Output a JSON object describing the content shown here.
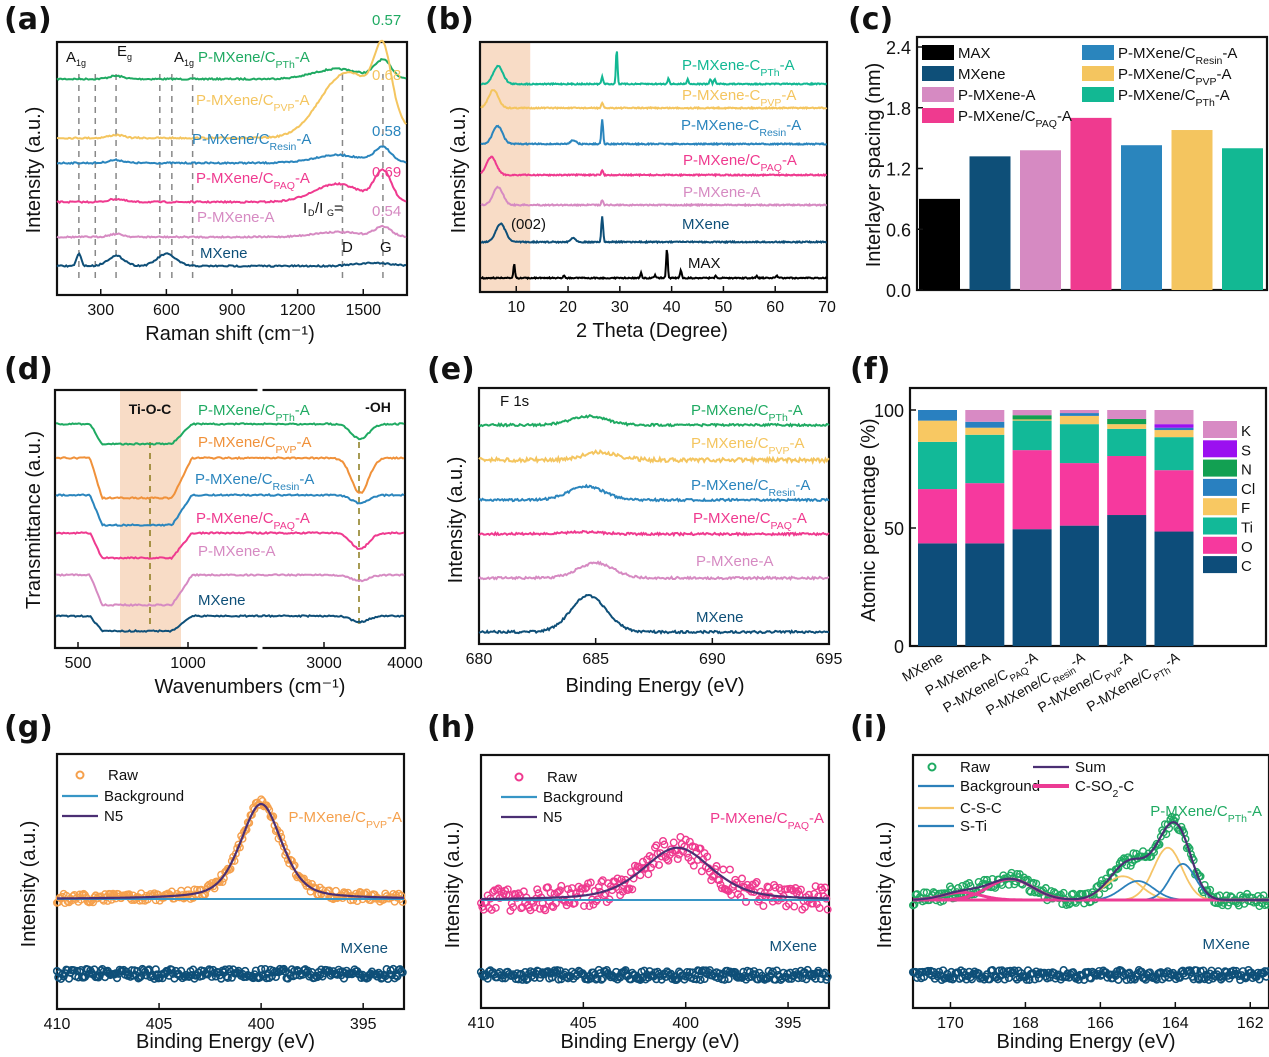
{
  "figure": {
    "panels": [
      "(a)",
      "(b)",
      "(c)",
      "(d)",
      "(e)",
      "(f)",
      "(g)",
      "(h)",
      "(i)"
    ]
  },
  "colors": {
    "MAX": "#000000",
    "MXene": "#0e4f78",
    "P-MXene-A": "#d68ac2",
    "PAQ": "#ef3a8f",
    "Resin": "#2a85bd",
    "PVP": "#f4c55f",
    "PTh": "#1faa62",
    "PTh_teal": "#12b893",
    "shade": "#f8dcc6",
    "N5": "#4b2f73",
    "background_line": "#3796c6",
    "CSO2C": "#ec3b94",
    "CSC": "#f5c467",
    "STi": "#2c80ba",
    "K": "#d88ac4",
    "S": "#9b10f0",
    "N": "#12a052",
    "Cl": "#2980c0",
    "F": "#f8c862",
    "Ti": "#12b998",
    "O": "#f6399e",
    "C": "#0d4d7a"
  },
  "chart_data": [
    {
      "id": "a",
      "type": "line",
      "title": "",
      "xlabel": "Raman shift (cm-1)",
      "ylabel": "Intensity (a.u.)",
      "xlim": [
        100,
        1700
      ],
      "xticks": [
        300,
        600,
        900,
        1200,
        1500
      ],
      "series": [
        {
          "name": "P-MXene/C_PTh-A",
          "id_ig": "0.57"
        },
        {
          "name": "P-MXene/C_PVP-A",
          "id_ig": "0.68"
        },
        {
          "name": "P-MXene/C_Resin-A",
          "id_ig": "0.58"
        },
        {
          "name": "P-MXene/C_PAQ-A",
          "id_ig": "0.69"
        },
        {
          "name": "P-MXene-A",
          "id_ig": "0.54"
        },
        {
          "name": "MXene",
          "id_ig": ""
        }
      ],
      "dashed_lines_x": [
        200,
        275,
        370,
        570,
        625,
        720,
        1405,
        1590
      ],
      "annotations": [
        "A1g",
        "Eg",
        "A1g",
        "ID/IG=",
        "D",
        "G"
      ],
      "peaks": {
        "D": 1405,
        "G": 1590
      }
    },
    {
      "id": "b",
      "type": "line",
      "xlabel": "2 Theta (Degree)",
      "ylabel": "Intensity (a.u.)",
      "xlim": [
        3,
        70
      ],
      "xticks": [
        10,
        20,
        30,
        40,
        50,
        60,
        70
      ],
      "shaded_region_x": [
        3,
        12.7
      ],
      "annotation": "(002)",
      "series": [
        {
          "name": "P-MXene-C_PTh-A",
          "peak_002": 6.5
        },
        {
          "name": "P-MXene-C_PVP-A",
          "peak_002": 5.6
        },
        {
          "name": "P-MXene-C_Resin-A",
          "peak_002": 6.4
        },
        {
          "name": "P-MXene/C_PAQ-A",
          "peak_002": 5.2
        },
        {
          "name": "P-MXene-A",
          "peak_002": 6.5
        },
        {
          "name": "MXene",
          "peak_002": 7.0
        },
        {
          "name": "MAX",
          "peaks": [
            9.6,
            19.2,
            34.1,
            36.8,
            39.1,
            41.8,
            48.5,
            56.5,
            60.3
          ]
        }
      ]
    },
    {
      "id": "c",
      "type": "bar",
      "xlabel": "",
      "ylabel": "Interlayer spacing (nm)",
      "ylim": [
        0,
        2.4
      ],
      "yticks": [
        "0.0",
        "0.6",
        "1.2",
        "1.8",
        "2.4"
      ],
      "categories": [
        "MAX",
        "MXene",
        "P-MXene-A",
        "P-MXene/C_PAQ-A",
        "P-MXene/C_Resin-A",
        "P-MXene/C_PVP-A",
        "P-MXene/C_PTh-A"
      ],
      "values": [
        0.9,
        1.32,
        1.38,
        1.7,
        1.43,
        1.58,
        1.4
      ],
      "legend": [
        "MAX",
        "MXene",
        "P-MXene-A",
        "P-MXene/C_PAQ-A",
        "P-MXene/C_Resin-A",
        "P-MXene/C_PVP-A",
        "P-MXene/C_PTh-A"
      ],
      "legend_placement": "top"
    },
    {
      "id": "d",
      "type": "line",
      "xlabel": "Wavenumbers (cm-1)",
      "ylabel": "Transmittance (a.u.)",
      "xticks": [
        "500",
        "1000",
        "3000",
        "4000"
      ],
      "axis_break": true,
      "shaded_region_label": "Ti-O-C",
      "annotation_oh": "-OH",
      "series": [
        "P-MXene/C_PTh-A",
        "P-MXene/C_PVP-A",
        "P-MXene/C_Resin-A",
        "P-MXene/C_PAQ-A",
        "P-MXene-A",
        "MXene"
      ]
    },
    {
      "id": "e",
      "type": "line",
      "xlabel": "Binding Energy (eV)",
      "ylabel": "Intensity (a.u.)",
      "xlim": [
        680,
        695
      ],
      "xticks": [
        680,
        685,
        690,
        695
      ],
      "annotation": "F 1s",
      "series": [
        {
          "name": "P-MXene/C_PTh-A",
          "peak": 684.7,
          "height": 0.35
        },
        {
          "name": "P-MXene/C_PVP-A",
          "peak": 685.2,
          "height": 0.3
        },
        {
          "name": "P-MXene/C_Resin-A",
          "peak": 684.6,
          "height": 0.55
        },
        {
          "name": "P-MXene/C_PAQ-A",
          "peak": 684.5,
          "height": 0.08
        },
        {
          "name": "P-MXene-A",
          "peak": 685.0,
          "height": 0.6
        },
        {
          "name": "MXene",
          "peak": 684.7,
          "height": 1.45
        }
      ]
    },
    {
      "id": "f",
      "type": "bar",
      "stacked": true,
      "ylabel": "Atomic percentage (%)",
      "ylim": [
        0,
        100
      ],
      "yticks": [
        "0",
        "50",
        "100"
      ],
      "categories": [
        "MXene",
        "P-MXene-A",
        "P-MXene/C_PAQ-A",
        "P-MXene/C_Resin-A",
        "P-MXene/C_PVP-A",
        "P-MXene/C_PTh-A"
      ],
      "series": [
        {
          "name": "C",
          "values": [
            43.5,
            43.5,
            49.5,
            51.0,
            55.5,
            48.5
          ]
        },
        {
          "name": "O",
          "values": [
            23.0,
            25.5,
            33.5,
            26.5,
            25.0,
            26.0
          ]
        },
        {
          "name": "Ti",
          "values": [
            20.0,
            20.5,
            12.5,
            16.5,
            11.5,
            14.0
          ]
        },
        {
          "name": "F",
          "values": [
            9.0,
            3.0,
            0.5,
            3.5,
            2.0,
            3.0
          ]
        },
        {
          "name": "Cl",
          "values": [
            4.5,
            2.5,
            0.0,
            1.2,
            0.0,
            1.0
          ]
        },
        {
          "name": "N",
          "values": [
            0.0,
            0.0,
            1.8,
            0.0,
            2.2,
            0.0
          ]
        },
        {
          "name": "S",
          "values": [
            0.0,
            0.0,
            0.0,
            0.0,
            0.0,
            1.5
          ]
        },
        {
          "name": "K",
          "values": [
            0.0,
            5.0,
            2.2,
            1.3,
            3.8,
            6.0
          ]
        }
      ],
      "legend": [
        "K",
        "S",
        "N",
        "Cl",
        "F",
        "Ti",
        "O",
        "C"
      ],
      "legend_placement": "right"
    },
    {
      "id": "g",
      "type": "scatter",
      "xlabel": "Binding Energy (eV)",
      "ylabel": "Intensity (a.u.)",
      "xlim": [
        410,
        393
      ],
      "xticks": [
        410,
        405,
        400,
        395
      ],
      "legend": [
        "Raw",
        "Background",
        "N5"
      ],
      "sample_label": "P-MXene/C_PVP-A",
      "reference_label": "MXene",
      "fit": {
        "component": "N5",
        "center": 400.0,
        "fwhm": 2.4,
        "height": 1.0
      },
      "noise": 0.05
    },
    {
      "id": "h",
      "type": "scatter",
      "xlabel": "Binding Energy (eV)",
      "ylabel": "Intensity (a.u.)",
      "xlim": [
        410,
        393
      ],
      "xticks": [
        410,
        405,
        400,
        395
      ],
      "legend": [
        "Raw",
        "Background",
        "N5"
      ],
      "sample_label": "P-MXene/C_PAQ-A",
      "reference_label": "MXene",
      "fit": {
        "component": "N5",
        "center": 400.4,
        "fwhm": 4.0,
        "height": 0.55
      },
      "noise": 0.13
    },
    {
      "id": "i",
      "type": "scatter",
      "xlabel": "Binding Energy (eV)",
      "ylabel": "Intensity (a.u.)",
      "xlim": [
        171,
        161.5
      ],
      "xticks": [
        170,
        168,
        166,
        164,
        162
      ],
      "legend": [
        "Raw",
        "Sum",
        "Background",
        "C-SO2-C",
        "C-S-C",
        "S-Ti"
      ],
      "sample_label": "P-MXene/C_PTh-A",
      "reference_label": "MXene",
      "components": [
        {
          "name": "C-SO2-C",
          "center": 168.4,
          "fwhm": 1.4,
          "height": 0.22
        },
        {
          "name": "C-SO2-C",
          "center": 169.7,
          "fwhm": 1.2,
          "height": 0.08
        },
        {
          "name": "C-S-C",
          "center": 165.4,
          "fwhm": 1.1,
          "height": 0.25
        },
        {
          "name": "C-S-C",
          "center": 164.2,
          "fwhm": 0.9,
          "height": 0.55
        },
        {
          "name": "S-Ti",
          "center": 165.0,
          "fwhm": 1.0,
          "height": 0.2
        },
        {
          "name": "S-Ti",
          "center": 163.8,
          "fwhm": 0.8,
          "height": 0.38
        }
      ],
      "noise": 0.07
    }
  ]
}
